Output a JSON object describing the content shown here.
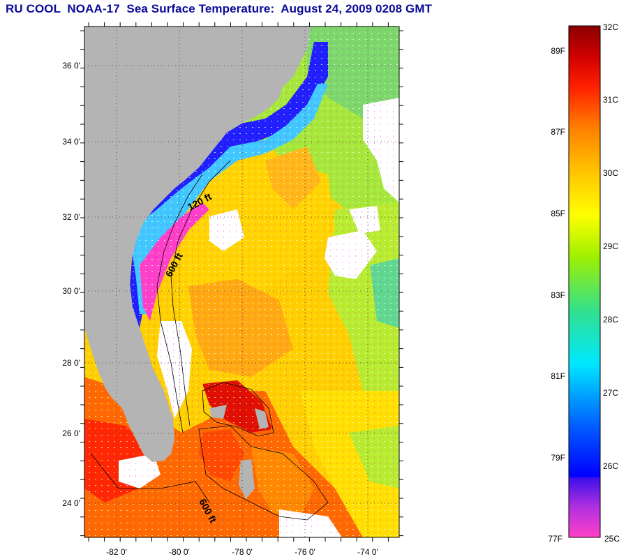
{
  "title": "RU COOL  NOAA-17  Sea Surface Temperature:  August 24, 2009 0208 GMT",
  "map": {
    "lat_labels": [
      "36 0'",
      "34 0'",
      "32 0'",
      "30 0'",
      "28 0'",
      "26 0'",
      "24 0'"
    ],
    "lon_labels": [
      "-82 0'",
      "-80 0'",
      "-78 0'",
      "-76 0'",
      "-74 0'"
    ],
    "contour_labels": [
      "120 ft",
      "600 ft",
      "600 ft"
    ],
    "colors": {
      "land": "#b4b4b4",
      "cloud": "#ffffff",
      "frame": "#000000"
    }
  },
  "colorbar": {
    "celsius_labels": [
      "32C",
      "31C",
      "30C",
      "29C",
      "28C",
      "27C",
      "26C",
      "25C"
    ],
    "fahrenheit_labels": [
      "89F",
      "87F",
      "85F",
      "83F",
      "81F",
      "79F",
      "77F"
    ],
    "gradient": [
      "#ff40c8",
      "#8020e0",
      "#0000ff",
      "#0060ff",
      "#00c0ff",
      "#00e0e0",
      "#40e080",
      "#a0f000",
      "#ffff00",
      "#ffc000",
      "#ff8000",
      "#ff3000",
      "#e00000",
      "#900000"
    ]
  }
}
